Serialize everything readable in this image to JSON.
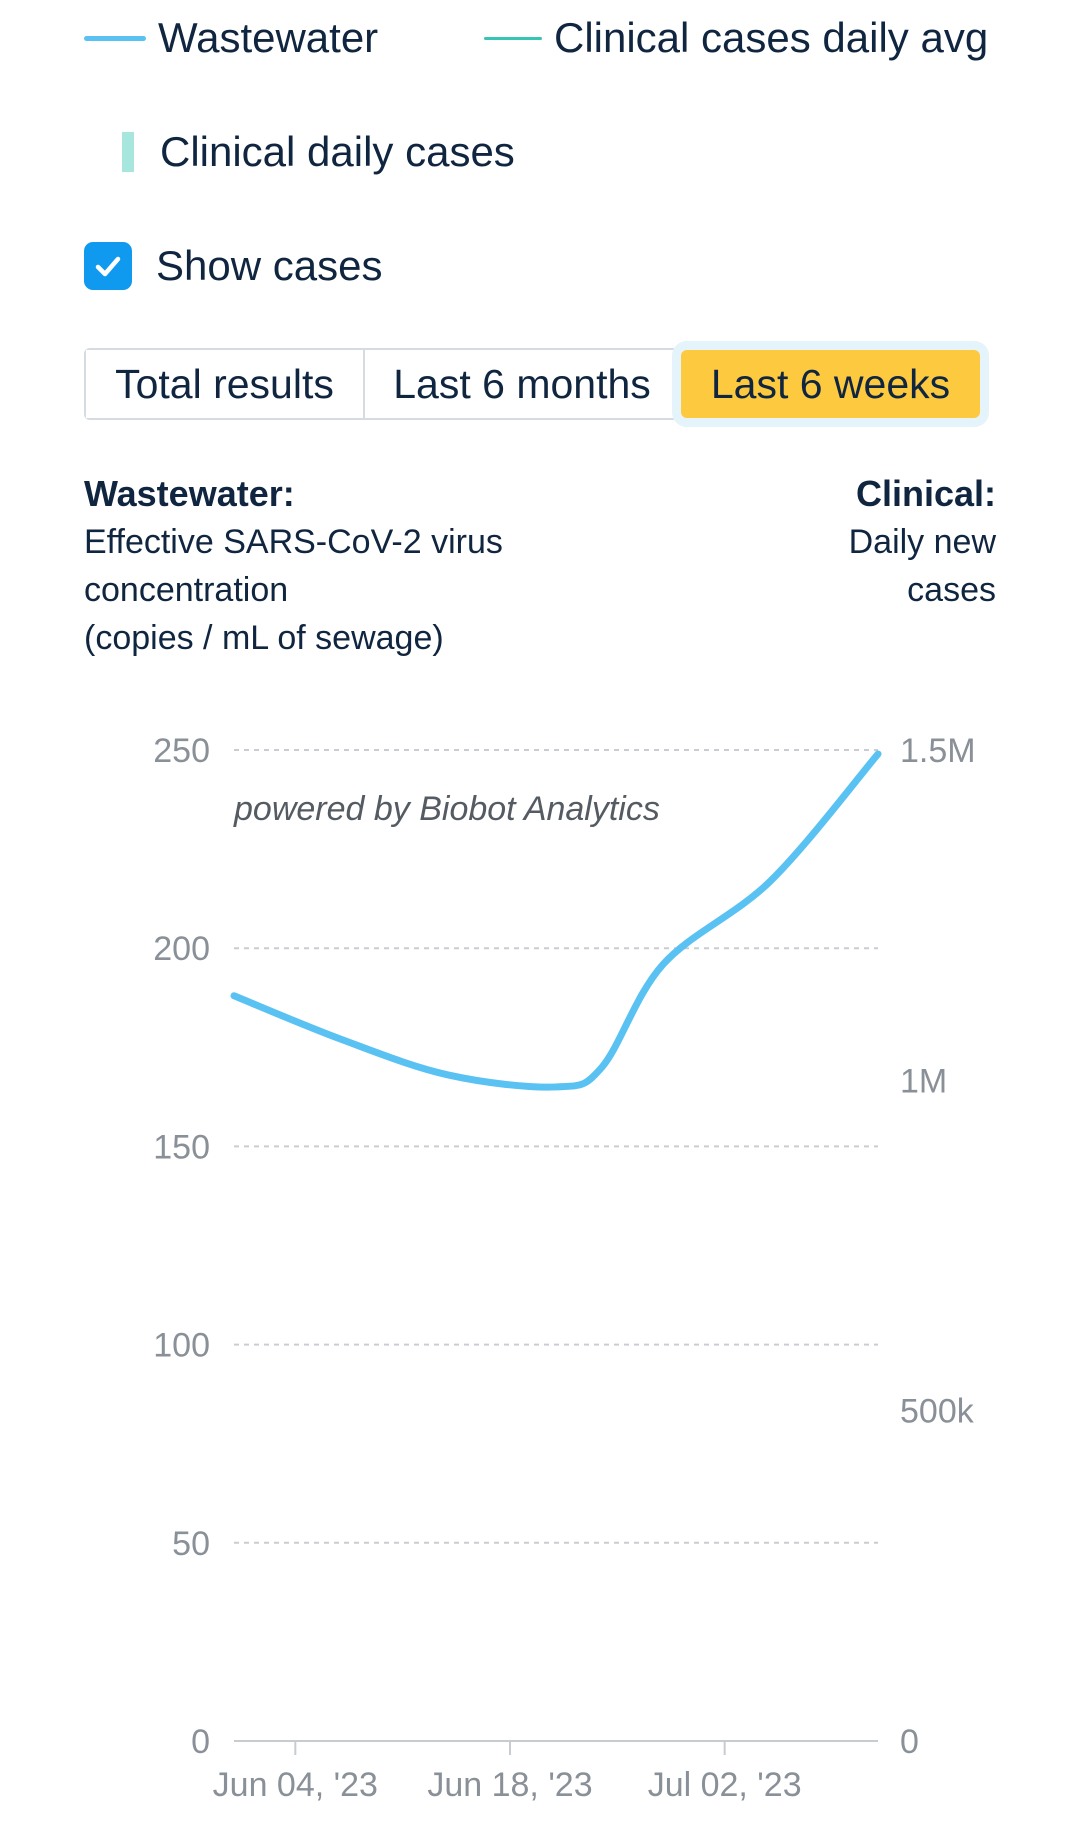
{
  "legend": {
    "wastewater": {
      "label": "Wastewater",
      "color": "#5ac2f2"
    },
    "clinical_avg": {
      "label": "Clinical cases daily avg",
      "color": "#36c4b4"
    },
    "clinical_daily": {
      "label": "Clinical daily cases",
      "color": "#a6e6dc"
    }
  },
  "show_cases": {
    "label": "Show cases",
    "checked": true
  },
  "range_toggle": {
    "options": [
      "Total results",
      "Last 6 months",
      "Last 6 weeks"
    ],
    "selected": "Last 6 weeks"
  },
  "left_axis_title": {
    "heading": "Wastewater:",
    "line1": "Effective SARS-CoV-2 virus",
    "line2": "concentration",
    "line3": "(copies / mL of sewage)"
  },
  "right_axis_title": {
    "heading": "Clinical:",
    "line1": "Daily new",
    "line2": "cases"
  },
  "chart_data": {
    "type": "line",
    "watermark": "powered by Biobot Analytics",
    "x_ticks": [
      "Jun 04, '23",
      "Jun 18, '23",
      "Jul 02, '23"
    ],
    "x_tick_dates": [
      "2023-06-04",
      "2023-06-18",
      "2023-07-02"
    ],
    "xlim": [
      "2023-05-31",
      "2023-07-12"
    ],
    "left_axis": {
      "ylim": [
        0,
        250
      ],
      "ticks": [
        "0",
        "50",
        "100",
        "150",
        "200",
        "250"
      ]
    },
    "right_axis": {
      "ylim": [
        0,
        1500000
      ],
      "ticks": [
        "0",
        "500k",
        "1M",
        "1.5M"
      ]
    },
    "grid": true,
    "series": [
      {
        "name": "Wastewater",
        "axis": "left",
        "color": "#5ac2f2",
        "points": [
          {
            "x": "2023-05-31",
            "y": 188
          },
          {
            "x": "2023-06-07",
            "y": 177
          },
          {
            "x": "2023-06-14",
            "y": 168
          },
          {
            "x": "2023-06-21",
            "y": 165
          },
          {
            "x": "2023-06-24",
            "y": 170
          },
          {
            "x": "2023-06-28",
            "y": 196
          },
          {
            "x": "2023-07-05",
            "y": 217
          },
          {
            "x": "2023-07-12",
            "y": 249
          }
        ]
      }
    ]
  }
}
